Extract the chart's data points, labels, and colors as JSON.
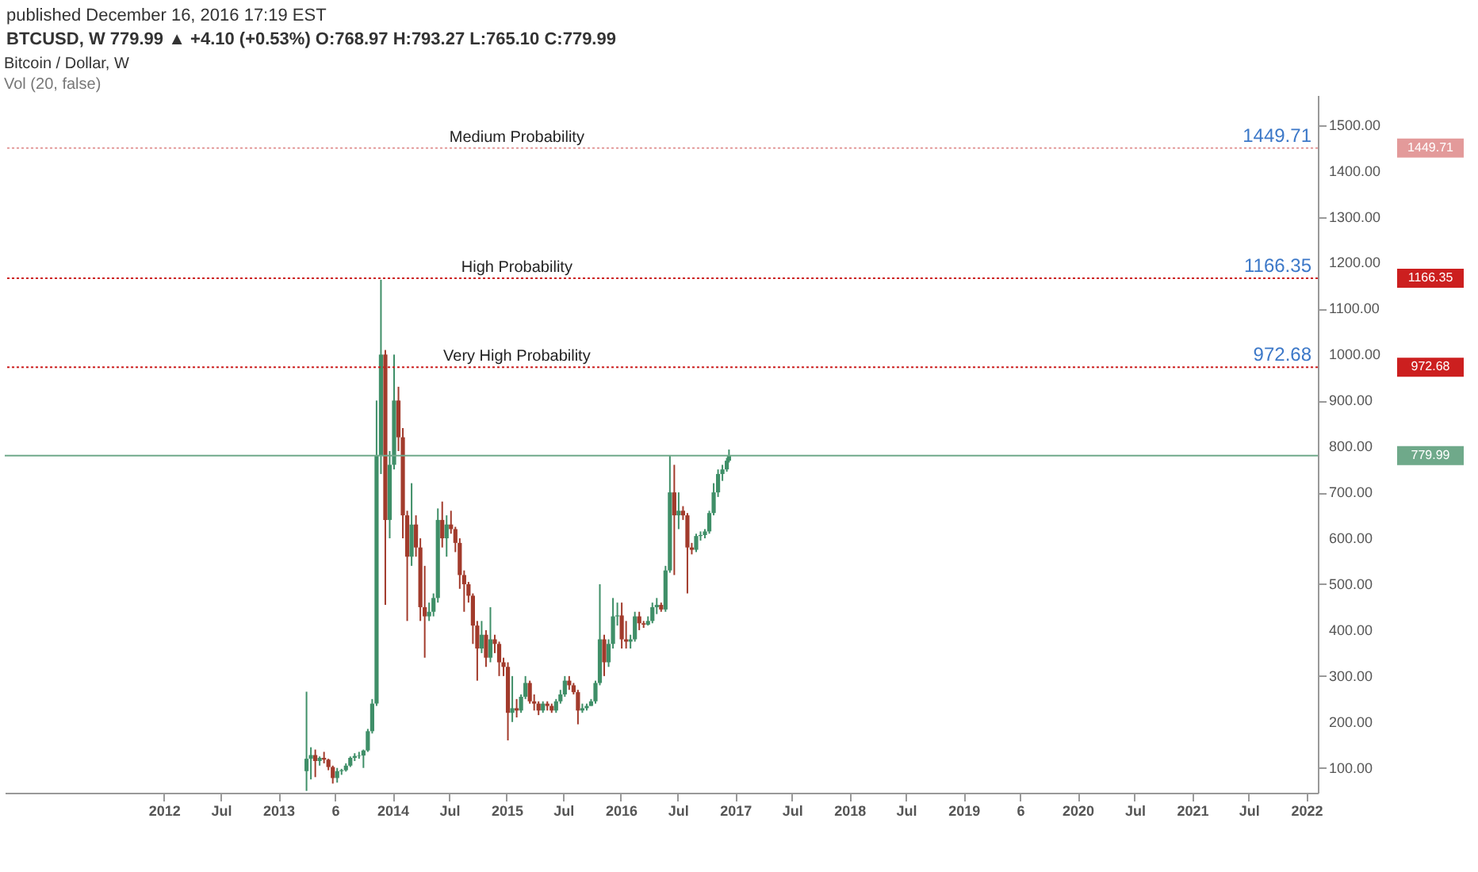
{
  "chart_data": {
    "type": "candlestick",
    "title": "Bitcoin / Dollar, W",
    "subtitle": "BTCUSD, W 779.99 ▲ +4.10 (+0.53%) O:768.97 H:793.27 L:765.10 C:779.99",
    "annotations": [
      "published December 16, 2016 17:19 EST",
      "Vol (20, false)",
      "1449.71",
      "1166.35",
      "972.68",
      "779.99"
    ],
    "x": [
      "2013-04-01",
      "2013-04-15",
      "2013-04-29",
      "2013-05-13",
      "2013-05-27",
      "2013-06-10",
      "2013-06-24",
      "2013-07-08",
      "2013-07-22",
      "2013-08-05",
      "2013-08-19",
      "2013-09-02",
      "2013-09-16",
      "2013-09-30",
      "2013-10-14",
      "2013-10-28",
      "2013-11-11",
      "2013-11-25",
      "2013-12-09",
      "2013-12-23",
      "2014-01-06",
      "2014-01-20",
      "2014-02-03",
      "2014-02-17",
      "2014-03-03",
      "2014-03-17",
      "2014-03-31",
      "2014-04-14",
      "2014-04-28",
      "2014-05-12",
      "2014-05-26",
      "2014-06-09",
      "2014-06-23",
      "2014-07-07",
      "2014-07-21",
      "2014-08-04",
      "2014-08-18",
      "2014-09-01",
      "2014-09-15",
      "2014-09-29",
      "2014-10-13",
      "2014-10-27",
      "2014-11-10",
      "2014-11-24",
      "2014-12-08",
      "2014-12-22",
      "2015-01-05",
      "2015-01-19",
      "2015-02-02",
      "2015-02-16",
      "2015-03-02",
      "2015-03-16",
      "2015-03-30",
      "2015-04-13",
      "2015-04-27",
      "2015-05-11",
      "2015-05-25",
      "2015-06-08",
      "2015-06-22",
      "2015-07-06",
      "2015-07-20",
      "2015-08-03",
      "2015-08-17",
      "2015-08-31",
      "2015-09-14",
      "2015-09-28",
      "2015-10-12",
      "2015-10-26",
      "2015-11-09",
      "2015-11-23",
      "2015-12-07",
      "2015-12-21",
      "2016-01-04",
      "2016-01-18",
      "2016-02-01",
      "2016-02-15",
      "2016-02-29",
      "2016-03-14",
      "2016-03-28",
      "2016-04-11",
      "2016-04-25",
      "2016-05-09",
      "2016-05-23",
      "2016-06-06",
      "2016-06-20",
      "2016-07-04",
      "2016-07-18",
      "2016-08-01",
      "2016-08-15",
      "2016-08-29",
      "2016-09-12",
      "2016-09-26",
      "2016-10-10",
      "2016-10-24",
      "2016-11-07",
      "2016-11-21",
      "2016-12-05",
      "2016-12-12"
    ],
    "ohlc": [
      [
        93,
        266,
        50,
        120
      ],
      [
        120,
        145,
        75,
        128
      ],
      [
        128,
        140,
        80,
        115
      ],
      [
        115,
        125,
        105,
        122
      ],
      [
        122,
        135,
        110,
        118
      ],
      [
        118,
        120,
        95,
        102
      ],
      [
        102,
        105,
        66,
        78
      ],
      [
        78,
        100,
        68,
        93
      ],
      [
        93,
        98,
        85,
        95
      ],
      [
        95,
        110,
        92,
        105
      ],
      [
        105,
        125,
        102,
        122
      ],
      [
        122,
        132,
        115,
        126
      ],
      [
        126,
        135,
        120,
        127
      ],
      [
        127,
        140,
        100,
        138
      ],
      [
        138,
        185,
        135,
        180
      ],
      [
        180,
        250,
        175,
        240
      ],
      [
        240,
        900,
        235,
        780
      ],
      [
        780,
        1163,
        740,
        1000
      ],
      [
        1000,
        1010,
        455,
        640
      ],
      [
        640,
        790,
        600,
        760
      ],
      [
        760,
        1000,
        750,
        900
      ],
      [
        900,
        930,
        790,
        820
      ],
      [
        820,
        840,
        600,
        650
      ],
      [
        650,
        660,
        420,
        560
      ],
      [
        560,
        720,
        540,
        630
      ],
      [
        630,
        650,
        560,
        580
      ],
      [
        580,
        600,
        420,
        450
      ],
      [
        450,
        540,
        340,
        430
      ],
      [
        430,
        460,
        420,
        440
      ],
      [
        440,
        480,
        430,
        470
      ],
      [
        470,
        665,
        460,
        640
      ],
      [
        640,
        680,
        580,
        600
      ],
      [
        600,
        650,
        560,
        630
      ],
      [
        630,
        660,
        610,
        620
      ],
      [
        620,
        625,
        570,
        590
      ],
      [
        590,
        600,
        490,
        520
      ],
      [
        520,
        530,
        440,
        500
      ],
      [
        500,
        505,
        460,
        475
      ],
      [
        475,
        480,
        370,
        410
      ],
      [
        410,
        420,
        290,
        360
      ],
      [
        360,
        420,
        350,
        390
      ],
      [
        390,
        400,
        320,
        340
      ],
      [
        340,
        450,
        330,
        380
      ],
      [
        380,
        390,
        350,
        370
      ],
      [
        370,
        375,
        300,
        330
      ],
      [
        330,
        340,
        300,
        320
      ],
      [
        320,
        330,
        160,
        220
      ],
      [
        220,
        300,
        200,
        230
      ],
      [
        230,
        250,
        210,
        225
      ],
      [
        225,
        260,
        220,
        255
      ],
      [
        255,
        300,
        250,
        285
      ],
      [
        285,
        290,
        240,
        245
      ],
      [
        245,
        260,
        225,
        240
      ],
      [
        240,
        245,
        215,
        225
      ],
      [
        225,
        245,
        220,
        240
      ],
      [
        240,
        245,
        225,
        235
      ],
      [
        235,
        240,
        220,
        225
      ],
      [
        225,
        250,
        220,
        245
      ],
      [
        245,
        270,
        240,
        260
      ],
      [
        260,
        300,
        255,
        290
      ],
      [
        290,
        300,
        270,
        280
      ],
      [
        280,
        285,
        260,
        265
      ],
      [
        265,
        270,
        195,
        225
      ],
      [
        225,
        240,
        220,
        230
      ],
      [
        230,
        240,
        225,
        235
      ],
      [
        235,
        250,
        235,
        245
      ],
      [
        245,
        290,
        240,
        285
      ],
      [
        285,
        500,
        280,
        380
      ],
      [
        380,
        390,
        300,
        330
      ],
      [
        330,
        380,
        320,
        370
      ],
      [
        370,
        470,
        360,
        430
      ],
      [
        430,
        460,
        410,
        432
      ],
      [
        432,
        460,
        360,
        380
      ],
      [
        380,
        420,
        360,
        375
      ],
      [
        375,
        390,
        360,
        380
      ],
      [
        380,
        440,
        375,
        430
      ],
      [
        430,
        440,
        400,
        415
      ],
      [
        415,
        420,
        405,
        412
      ],
      [
        412,
        430,
        410,
        420
      ],
      [
        420,
        460,
        415,
        450
      ],
      [
        450,
        470,
        435,
        455
      ],
      [
        455,
        460,
        440,
        445
      ],
      [
        445,
        540,
        440,
        530
      ],
      [
        530,
        780,
        525,
        700
      ],
      [
        700,
        760,
        520,
        650
      ],
      [
        650,
        700,
        620,
        660
      ],
      [
        660,
        670,
        640,
        650
      ],
      [
        650,
        655,
        480,
        580
      ],
      [
        580,
        590,
        565,
        575
      ],
      [
        575,
        610,
        570,
        605
      ],
      [
        605,
        615,
        595,
        607
      ],
      [
        607,
        620,
        600,
        615
      ],
      [
        615,
        660,
        610,
        655
      ],
      [
        655,
        720,
        650,
        700
      ],
      [
        700,
        750,
        690,
        740
      ],
      [
        740,
        760,
        725,
        750
      ],
      [
        750,
        775,
        745,
        768.97
      ],
      [
        768.97,
        793.27,
        765.1,
        779.99
      ]
    ],
    "colors": [
      "#3f8f68",
      "#3f8f68",
      "#a23b2c",
      "#3f8f68",
      "#a23b2c",
      "#a23b2c",
      "#a23b2c",
      "#3f8f68",
      "#3f8f68",
      "#3f8f68",
      "#3f8f68",
      "#3f8f68",
      "#3f8f68",
      "#3f8f68",
      "#3f8f68",
      "#3f8f68",
      "#3f8f68",
      "#3f8f68",
      "#a23b2c",
      "#3f8f68",
      "#3f8f68",
      "#a23b2c",
      "#a23b2c",
      "#a23b2c",
      "#3f8f68",
      "#a23b2c",
      "#a23b2c",
      "#a23b2c",
      "#3f8f68",
      "#3f8f68",
      "#3f8f68",
      "#a23b2c",
      "#3f8f68",
      "#a23b2c",
      "#a23b2c",
      "#a23b2c",
      "#a23b2c",
      "#a23b2c",
      "#a23b2c",
      "#a23b2c",
      "#3f8f68",
      "#a23b2c",
      "#3f8f68",
      "#a23b2c",
      "#a23b2c",
      "#a23b2c",
      "#a23b2c",
      "#3f8f68",
      "#a23b2c",
      "#3f8f68",
      "#3f8f68",
      "#a23b2c",
      "#a23b2c",
      "#a23b2c",
      "#3f8f68",
      "#a23b2c",
      "#a23b2c",
      "#3f8f68",
      "#3f8f68",
      "#3f8f68",
      "#a23b2c",
      "#a23b2c",
      "#a23b2c",
      "#3f8f68",
      "#3f8f68",
      "#3f8f68",
      "#3f8f68",
      "#3f8f68",
      "#a23b2c",
      "#3f8f68",
      "#3f8f68",
      "#3f8f68",
      "#a23b2c",
      "#a23b2c",
      "#3f8f68",
      "#3f8f68",
      "#a23b2c",
      "#a23b2c",
      "#3f8f68",
      "#3f8f68",
      "#3f8f68",
      "#a23b2c",
      "#3f8f68",
      "#3f8f68",
      "#a23b2c",
      "#3f8f68",
      "#a23b2c",
      "#a23b2c",
      "#a23b2c",
      "#3f8f68",
      "#3f8f68",
      "#3f8f68",
      "#3f8f68",
      "#3f8f68",
      "#3f8f68",
      "#3f8f68",
      "#3f8f68",
      "#3f8f68"
    ],
    "xlim": [
      "2010-08-10",
      "2022-02-07"
    ],
    "xticks": [
      {
        "value": "2012-01-01",
        "label": "2012"
      },
      {
        "value": "2012-07-01",
        "label": "Jul"
      },
      {
        "value": "2013-01-01",
        "label": "2013"
      },
      {
        "value": "2013-07-01",
        "label": "6"
      },
      {
        "value": "2014-01-01",
        "label": "2014"
      },
      {
        "value": "2014-07-01",
        "label": "Jul"
      },
      {
        "value": "2015-01-01",
        "label": "2015"
      },
      {
        "value": "2015-07-01",
        "label": "Jul"
      },
      {
        "value": "2016-01-01",
        "label": "2016"
      },
      {
        "value": "2016-07-01",
        "label": "Jul"
      },
      {
        "value": "2017-01-01",
        "label": "2017"
      },
      {
        "value": "2017-07-01",
        "label": "Jul"
      },
      {
        "value": "2018-01-01",
        "label": "2018"
      },
      {
        "value": "2018-07-01",
        "label": "Jul"
      },
      {
        "value": "2019-01-01",
        "label": "2019"
      },
      {
        "value": "2019-07-01",
        "label": "6"
      },
      {
        "value": "2020-01-01",
        "label": "2020"
      },
      {
        "value": "2020-07-01",
        "label": "Jul"
      },
      {
        "value": "2021-01-01",
        "label": "2021"
      },
      {
        "value": "2021-07-01",
        "label": "Jul"
      },
      {
        "value": "2022-01-01",
        "label": "2022"
      }
    ],
    "ylim": [
      46,
      1565
    ],
    "yticks": [
      {
        "value": 100,
        "label": "100.00"
      },
      {
        "value": 200,
        "label": "200.00"
      },
      {
        "value": 300,
        "label": "300.00"
      },
      {
        "value": 400,
        "label": "400.00"
      },
      {
        "value": 500,
        "label": "500.00"
      },
      {
        "value": 600,
        "label": "600.00"
      },
      {
        "value": 700,
        "label": "700.00"
      },
      {
        "value": 800,
        "label": "800.00"
      },
      {
        "value": 900,
        "label": "900.00"
      },
      {
        "value": 1000,
        "label": "1000.00"
      },
      {
        "value": 1100,
        "label": "1100.00"
      },
      {
        "value": 1200,
        "label": "1200.00"
      },
      {
        "value": 1300,
        "label": "1300.00"
      },
      {
        "value": 1400,
        "label": "1400.00"
      },
      {
        "value": 1500,
        "label": "1500.00"
      }
    ],
    "ref_lines": [
      {
        "axis": "y",
        "value": 1449.71,
        "label": "Medium Probability",
        "color": "#e39a9a",
        "line_style": "dotted"
      },
      {
        "axis": "y",
        "value": 1166.35,
        "label": "High Probability",
        "color": "#cc1f1f",
        "line_style": "dotted"
      },
      {
        "axis": "y",
        "value": 972.68,
        "label": "Very High Probability",
        "color": "#cc1f1f",
        "line_style": "dotted"
      },
      {
        "axis": "y",
        "value": 779.99,
        "label": null,
        "color": "#6fa98a",
        "line_style": "solid"
      }
    ]
  }
}
